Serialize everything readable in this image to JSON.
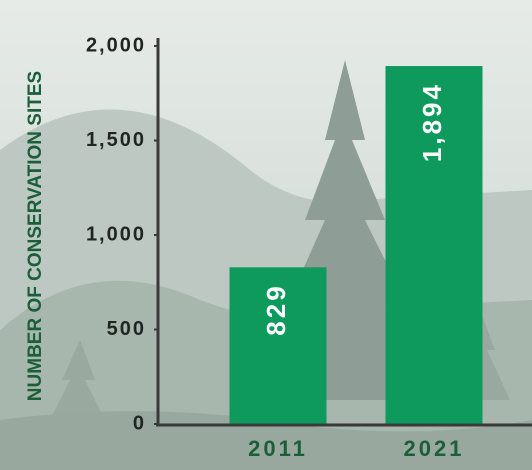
{
  "chart_data": {
    "type": "bar",
    "y_label": "NUMBER OF CONSERVATION SITES",
    "categories": [
      "2011",
      "2021"
    ],
    "values": [
      829,
      1894
    ],
    "value_labels": [
      "829",
      "1,894"
    ],
    "color": "#0e9a5c",
    "ylim": [
      0,
      2000
    ],
    "yticks": [
      0,
      500,
      {
        "value": 1000,
        "label": "1,000"
      },
      {
        "value": 1500,
        "label": "1,500"
      },
      {
        "value": 2000,
        "label": "2,000"
      }
    ]
  }
}
